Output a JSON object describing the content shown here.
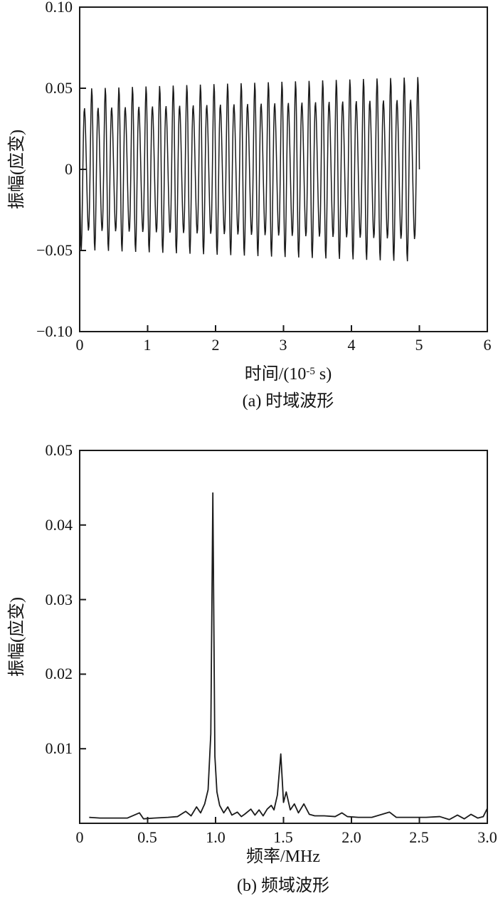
{
  "figure": {
    "background": "#ffffff",
    "line_color": "#1a1a1a"
  },
  "chart_data": [
    {
      "type": "line",
      "id": "time-domain",
      "caption": "(a) 时域波形",
      "xlabel": "时间/(10⁻⁵ s)",
      "xlabel_parts": {
        "base": "时间/(10",
        "sup": "-5",
        "suffix": " s)"
      },
      "ylabel": "振幅(应变)",
      "xlim": [
        0,
        6
      ],
      "ylim": [
        -0.1,
        0.1
      ],
      "grid": false,
      "legend": "none",
      "xticks": [
        {
          "v": 0,
          "label": "0"
        },
        {
          "v": 1,
          "label": "1"
        },
        {
          "v": 2,
          "label": "2"
        },
        {
          "v": 3,
          "label": "3"
        },
        {
          "v": 4,
          "label": "4"
        },
        {
          "v": 5,
          "label": "5"
        },
        {
          "v": 6,
          "label": "6"
        }
      ],
      "yticks": [
        {
          "v": 0.1,
          "label": "0.10"
        },
        {
          "v": 0.05,
          "label": "0.05"
        },
        {
          "v": 0,
          "label": "0"
        },
        {
          "v": -0.05,
          "label": "−0.05"
        },
        {
          "v": -0.1,
          "label": "−0.10"
        }
      ],
      "signal": {
        "t_start": 0,
        "t_end": 5,
        "dt": 0.008,
        "time_unit": "1e-5 s",
        "components": [
          {
            "freq_per_unit": 10,
            "freq_MHz": 1.0,
            "amp": 0.0445,
            "phase_deg": 180
          },
          {
            "freq_per_unit": 15,
            "freq_MHz": 1.5,
            "amp": 0.0095,
            "phase_deg": 180
          }
        ],
        "amp_ramp": [
          0.96,
          1.1
        ],
        "peak_amplitude_start": 0.048,
        "peak_amplitude_end": 0.06
      }
    },
    {
      "type": "line",
      "id": "frequency-domain",
      "caption": "(b) 频域波形",
      "xlabel": "频率/MHz",
      "ylabel": "振幅(应变)",
      "xlim": [
        0,
        3
      ],
      "ylim": [
        0,
        0.05
      ],
      "grid": false,
      "legend": "none",
      "xticks": [
        {
          "v": 0,
          "label": "0"
        },
        {
          "v": 0.5,
          "label": "0.5"
        },
        {
          "v": 1.0,
          "label": "1.0"
        },
        {
          "v": 1.5,
          "label": "1.5"
        },
        {
          "v": 2.0,
          "label": "2.0"
        },
        {
          "v": 2.5,
          "label": "2.5"
        },
        {
          "v": 3.0,
          "label": "3.0"
        }
      ],
      "yticks": [
        {
          "v": 0.05,
          "label": "0.05"
        },
        {
          "v": 0.04,
          "label": "0.04"
        },
        {
          "v": 0.03,
          "label": "0.03"
        },
        {
          "v": 0.02,
          "label": "0.02"
        },
        {
          "v": 0.01,
          "label": "0.01"
        }
      ],
      "peaks": [
        {
          "freq_MHz": 0.98,
          "amp": 0.044
        },
        {
          "freq_MHz": 1.48,
          "amp": 0.0093
        }
      ],
      "points": [
        [
          0.07,
          0.0008
        ],
        [
          0.15,
          0.0007
        ],
        [
          0.25,
          0.0007
        ],
        [
          0.35,
          0.0007
        ],
        [
          0.44,
          0.0014
        ],
        [
          0.47,
          0.0006
        ],
        [
          0.55,
          0.0007
        ],
        [
          0.65,
          0.0008
        ],
        [
          0.72,
          0.0009
        ],
        [
          0.78,
          0.0016
        ],
        [
          0.82,
          0.001
        ],
        [
          0.86,
          0.0022
        ],
        [
          0.89,
          0.0014
        ],
        [
          0.92,
          0.0026
        ],
        [
          0.945,
          0.0045
        ],
        [
          0.965,
          0.012
        ],
        [
          0.98,
          0.0443
        ],
        [
          0.995,
          0.009
        ],
        [
          1.01,
          0.0042
        ],
        [
          1.03,
          0.0024
        ],
        [
          1.06,
          0.0014
        ],
        [
          1.09,
          0.0022
        ],
        [
          1.12,
          0.0011
        ],
        [
          1.16,
          0.0015
        ],
        [
          1.19,
          0.0009
        ],
        [
          1.22,
          0.0013
        ],
        [
          1.26,
          0.0019
        ],
        [
          1.29,
          0.0011
        ],
        [
          1.32,
          0.0018
        ],
        [
          1.35,
          0.001
        ],
        [
          1.38,
          0.0019
        ],
        [
          1.41,
          0.0024
        ],
        [
          1.43,
          0.0018
        ],
        [
          1.455,
          0.0038
        ],
        [
          1.48,
          0.0093
        ],
        [
          1.5,
          0.0028
        ],
        [
          1.52,
          0.0042
        ],
        [
          1.55,
          0.0018
        ],
        [
          1.58,
          0.0026
        ],
        [
          1.61,
          0.0014
        ],
        [
          1.65,
          0.0026
        ],
        [
          1.69,
          0.0012
        ],
        [
          1.73,
          0.001
        ],
        [
          1.8,
          0.001
        ],
        [
          1.88,
          0.0009
        ],
        [
          1.93,
          0.0014
        ],
        [
          1.97,
          0.0009
        ],
        [
          2.05,
          0.0008
        ],
        [
          2.15,
          0.0008
        ],
        [
          2.28,
          0.0015
        ],
        [
          2.33,
          0.0008
        ],
        [
          2.45,
          0.0008
        ],
        [
          2.55,
          0.0008
        ],
        [
          2.65,
          0.0009
        ],
        [
          2.72,
          0.0005
        ],
        [
          2.78,
          0.0011
        ],
        [
          2.83,
          0.0006
        ],
        [
          2.88,
          0.0012
        ],
        [
          2.93,
          0.0007
        ],
        [
          2.97,
          0.0009
        ],
        [
          3.0,
          0.002
        ]
      ]
    }
  ]
}
